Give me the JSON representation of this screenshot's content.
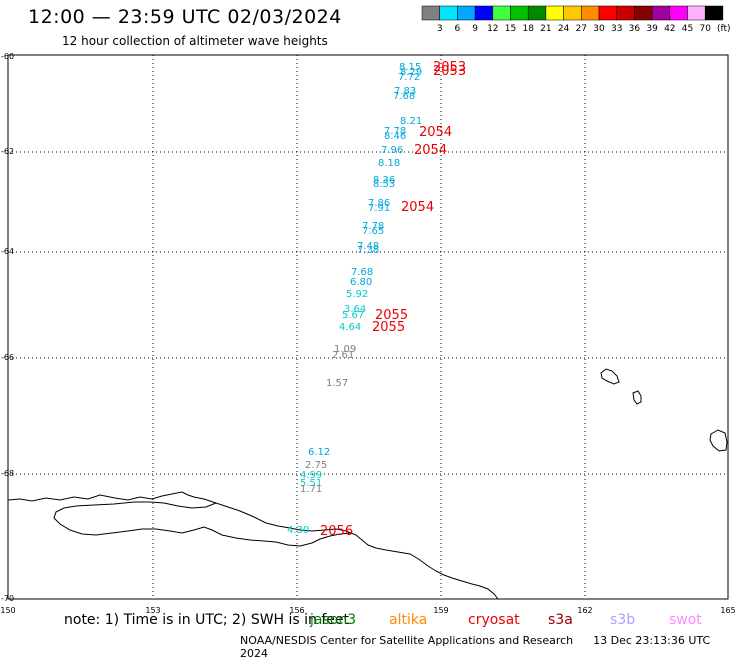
{
  "header": {
    "title": "12:00 — 23:59 UTC 02/03/2024",
    "subtitle": "12 hour collection of altimeter wave heights"
  },
  "legend": {
    "unit": "(ft)",
    "bins": [
      {
        "label": "3",
        "color": "#808080"
      },
      {
        "label": "6",
        "color": "#00e5ff"
      },
      {
        "label": "9",
        "color": "#00a8ff"
      },
      {
        "label": "12",
        "color": "#0000ff"
      },
      {
        "label": "15",
        "color": "#40ff40"
      },
      {
        "label": "18",
        "color": "#00c000"
      },
      {
        "label": "21",
        "color": "#008800"
      },
      {
        "label": "24",
        "color": "#ffff00"
      },
      {
        "label": "27",
        "color": "#ffc800"
      },
      {
        "label": "30",
        "color": "#ff8c00"
      },
      {
        "label": "33",
        "color": "#ff0000"
      },
      {
        "label": "36",
        "color": "#c80000"
      },
      {
        "label": "39",
        "color": "#880000"
      },
      {
        "label": "42",
        "color": "#a000a0"
      },
      {
        "label": "45",
        "color": "#ff00ff"
      },
      {
        "label": "70",
        "color": "#ffb0ff"
      },
      {
        "label": "",
        "color": "#000000"
      }
    ]
  },
  "axes": {
    "lon_ticks": [
      "150",
      "153",
      "156",
      "159",
      "162",
      "165"
    ],
    "lat_ticks": [
      "-60",
      "-62",
      "-64",
      "-66",
      "-68",
      "-70"
    ]
  },
  "wave_labels": [
    {
      "t": "8.15",
      "c": "#00aadd"
    },
    {
      "t": "8.29",
      "c": "#00aadd"
    },
    {
      "t": "7.72",
      "c": "#00aadd"
    },
    {
      "t": "7.83",
      "c": "#00aadd"
    },
    {
      "t": "7.68",
      "c": "#00aadd"
    },
    {
      "t": "8.21",
      "c": "#00aadd"
    },
    {
      "t": "7.78",
      "c": "#00aadd"
    },
    {
      "t": "8.46",
      "c": "#00aadd"
    },
    {
      "t": "7.96",
      "c": "#00aadd"
    },
    {
      "t": "8.18",
      "c": "#00aadd"
    },
    {
      "t": "8.36",
      "c": "#00aadd"
    },
    {
      "t": "8.53",
      "c": "#00aadd"
    },
    {
      "t": "7.86",
      "c": "#00aadd"
    },
    {
      "t": "7.91",
      "c": "#00aadd"
    },
    {
      "t": "7.78",
      "c": "#00aadd"
    },
    {
      "t": "7.65",
      "c": "#00aadd"
    },
    {
      "t": "7.48",
      "c": "#00aadd"
    },
    {
      "t": "7.38",
      "c": "#00aadd"
    },
    {
      "t": "7.68",
      "c": "#00aadd"
    },
    {
      "t": "6.80",
      "c": "#00aadd"
    },
    {
      "t": "5.92",
      "c": "#00cccc"
    },
    {
      "t": "3.64",
      "c": "#00cccc"
    },
    {
      "t": "5.67",
      "c": "#00cccc"
    },
    {
      "t": "4.64",
      "c": "#00cccc"
    },
    {
      "t": "1.09",
      "c": "#808080"
    },
    {
      "t": "2.61",
      "c": "#808080"
    },
    {
      "t": "1.57",
      "c": "#808080"
    },
    {
      "t": "6.12",
      "c": "#00aadd"
    },
    {
      "t": "2.75",
      "c": "#808080"
    },
    {
      "t": "4.99",
      "c": "#00cccc"
    },
    {
      "t": "5.51",
      "c": "#00cccc"
    },
    {
      "t": "1.71",
      "c": "#808080"
    },
    {
      "t": "4.30",
      "c": "#00cccc"
    }
  ],
  "time_labels": [
    {
      "t": "2053",
      "c": "#ee0000"
    },
    {
      "t": "2053",
      "c": "#ee0000"
    },
    {
      "t": "2054",
      "c": "#ee0000"
    },
    {
      "t": "2054",
      "c": "#ee0000"
    },
    {
      "t": "2054",
      "c": "#ee0000"
    },
    {
      "t": "2055",
      "c": "#ee0000"
    },
    {
      "t": "2055",
      "c": "#ee0000"
    },
    {
      "t": "2056",
      "c": "#ee0000"
    }
  ],
  "footer": {
    "note": "note: 1) Time is in UTC; 2) SWH is in feet",
    "satellites": [
      {
        "name": "jason3",
        "color": "#008000"
      },
      {
        "name": "altika",
        "color": "#ff8c00"
      },
      {
        "name": "cryosat",
        "color": "#ee0000"
      },
      {
        "name": "s3a",
        "color": "#a00000"
      },
      {
        "name": "s3b",
        "color": "#b0a0ff"
      },
      {
        "name": "swot",
        "color": "#ff88ff"
      }
    ],
    "credit": "NOAA/NESDIS Center for Satellite Applications and Research",
    "generated": "13 Dec 23:13:36 UTC 2024"
  }
}
